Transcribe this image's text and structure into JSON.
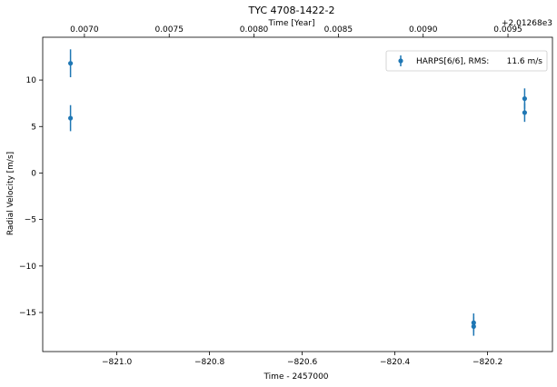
{
  "chart_data": {
    "type": "scatter",
    "title": "TYC 4708-1422-2",
    "xlabel": "Time - 2457000",
    "ylabel": "Radial Velocity [m/s]",
    "top_xlabel": "Time [Year]",
    "top_offset_label": "+2.01268e3",
    "xlim": [
      -821.16,
      -820.06
    ],
    "ylim": [
      -19.2,
      14.6
    ],
    "x_ticks": [
      -821.0,
      -820.8,
      -820.6,
      -820.4,
      -820.2
    ],
    "x_tick_labels": [
      "−821.0",
      "−820.8",
      "−820.6",
      "−820.4",
      "−820.2"
    ],
    "y_ticks": [
      10,
      5,
      0,
      -5,
      -10,
      -15
    ],
    "y_tick_labels": [
      "10",
      "5",
      "0",
      "−5",
      "−10",
      "−15"
    ],
    "top_ticks": [
      0.007,
      0.0075,
      0.008,
      0.0085,
      0.009,
      0.0095
    ],
    "top_tick_labels": [
      "0.0070",
      "0.0075",
      "0.0080",
      "0.0085",
      "0.0090",
      "0.0095"
    ],
    "top_tick_x_positions": [
      -821.07,
      -820.887,
      -820.704,
      -820.522,
      -820.339,
      -820.156
    ],
    "grid": false,
    "legend_position": "top-right",
    "legend_label": "HARPS[6/6], RMS:",
    "legend_value": "11.6 m/s",
    "series": [
      {
        "name": "HARPS[6/6]",
        "color": "#1f77b4",
        "x": [
          -821.1,
          -821.1,
          -820.23,
          -820.23,
          -820.12,
          -820.12
        ],
        "y": [
          11.8,
          5.9,
          -16.1,
          -16.5,
          8.0,
          6.5
        ],
        "yerr": [
          1.5,
          1.4,
          1.0,
          1.0,
          1.1,
          1.0
        ]
      }
    ]
  }
}
